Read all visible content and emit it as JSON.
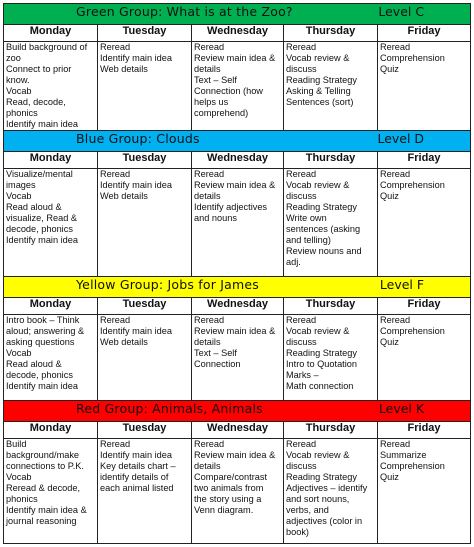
{
  "colors": {
    "green": "#00b050",
    "blue": "#00b0f0",
    "yellow": "#ffff00",
    "red": "#ff0000"
  },
  "days": [
    "Monday",
    "Tuesday",
    "Wednesday",
    "Thursday",
    "Friday"
  ],
  "groups": [
    {
      "title": "Green Group: What is at the Zoo?",
      "level": "Level C",
      "color": "green",
      "cells": [
        [
          "Build background of",
          "zoo",
          "Connect to prior",
          "know.",
          "Vocab",
          "Read, decode,",
          "phonics",
          "Identify main idea"
        ],
        [
          "Reread",
          "Identify main idea",
          "Web details"
        ],
        [
          "Reread",
          "Review main idea &",
          "details",
          "Text – Self",
          "Connection (how",
          "helps us",
          "comprehend)"
        ],
        [
          "Reread",
          "Vocab review &",
          "discuss",
          "Reading Strategy",
          "Asking & Telling",
          "Sentences (sort)"
        ],
        [
          "Reread",
          "Comprehension",
          "Quiz"
        ]
      ]
    },
    {
      "title": "Blue Group: Clouds",
      "level": "Level D",
      "color": "blue",
      "cells": [
        [
          "Visualize/mental",
          "images",
          "Vocab",
          "Read aloud &",
          "visualize, Read &",
          "decode, phonics",
          "Identify main idea"
        ],
        [
          "Reread",
          "Identify main idea",
          "Web details"
        ],
        [
          "Reread",
          "Review main idea &",
          "details",
          "Identify adjectives",
          "and nouns"
        ],
        [
          "Reread",
          "Vocab review &",
          "discuss",
          "Reading Strategy",
          "Write own",
          "sentences (asking",
          "and telling)",
          "Review nouns and",
          "adj."
        ],
        [
          "Reread",
          "Comprehension",
          "Quiz"
        ]
      ]
    },
    {
      "title": "Yellow Group: Jobs for James",
      "level": "Level F",
      "color": "yellow",
      "cells": [
        [
          "Intro book – Think",
          "aloud; answering &",
          "asking questions",
          "Vocab",
          "Read aloud &",
          "decode, phonics",
          "Identify main idea"
        ],
        [
          "Reread",
          "Identify main idea",
          "Web details"
        ],
        [
          "Reread",
          "Review main idea &",
          "details",
          "Text – Self",
          "Connection"
        ],
        [
          "Reread",
          "Vocab review &",
          "discuss",
          "Reading Strategy",
          "Intro to Quotation",
          "Marks –",
          "Math connection"
        ],
        [
          "Reread",
          "Comprehension",
          "Quiz"
        ]
      ]
    },
    {
      "title": "Red Group: Animals, Animals",
      "level": "Level K",
      "color": "red",
      "cells": [
        [
          "Build",
          "background/make",
          "connections to P.K.",
          "Vocab",
          "Reread & decode,",
          "phonics",
          "Identify main idea &",
          "journal reasoning"
        ],
        [
          "Reread",
          "Identify main idea",
          "Key details chart –",
          "identify details of",
          "each animal listed"
        ],
        [
          "Reread",
          "Review main idea &",
          "details",
          "Compare/contrast",
          "two animals from",
          "the story using a",
          "Venn diagram."
        ],
        [
          "Reread",
          "Vocab review &",
          "discuss",
          "Reading Strategy",
          "Adjectives – identify",
          "and sort nouns,",
          "verbs, and",
          "adjectives (color in",
          "book)"
        ],
        [
          "Reread",
          "Summarize",
          "Comprehension",
          "Quiz"
        ]
      ]
    }
  ]
}
